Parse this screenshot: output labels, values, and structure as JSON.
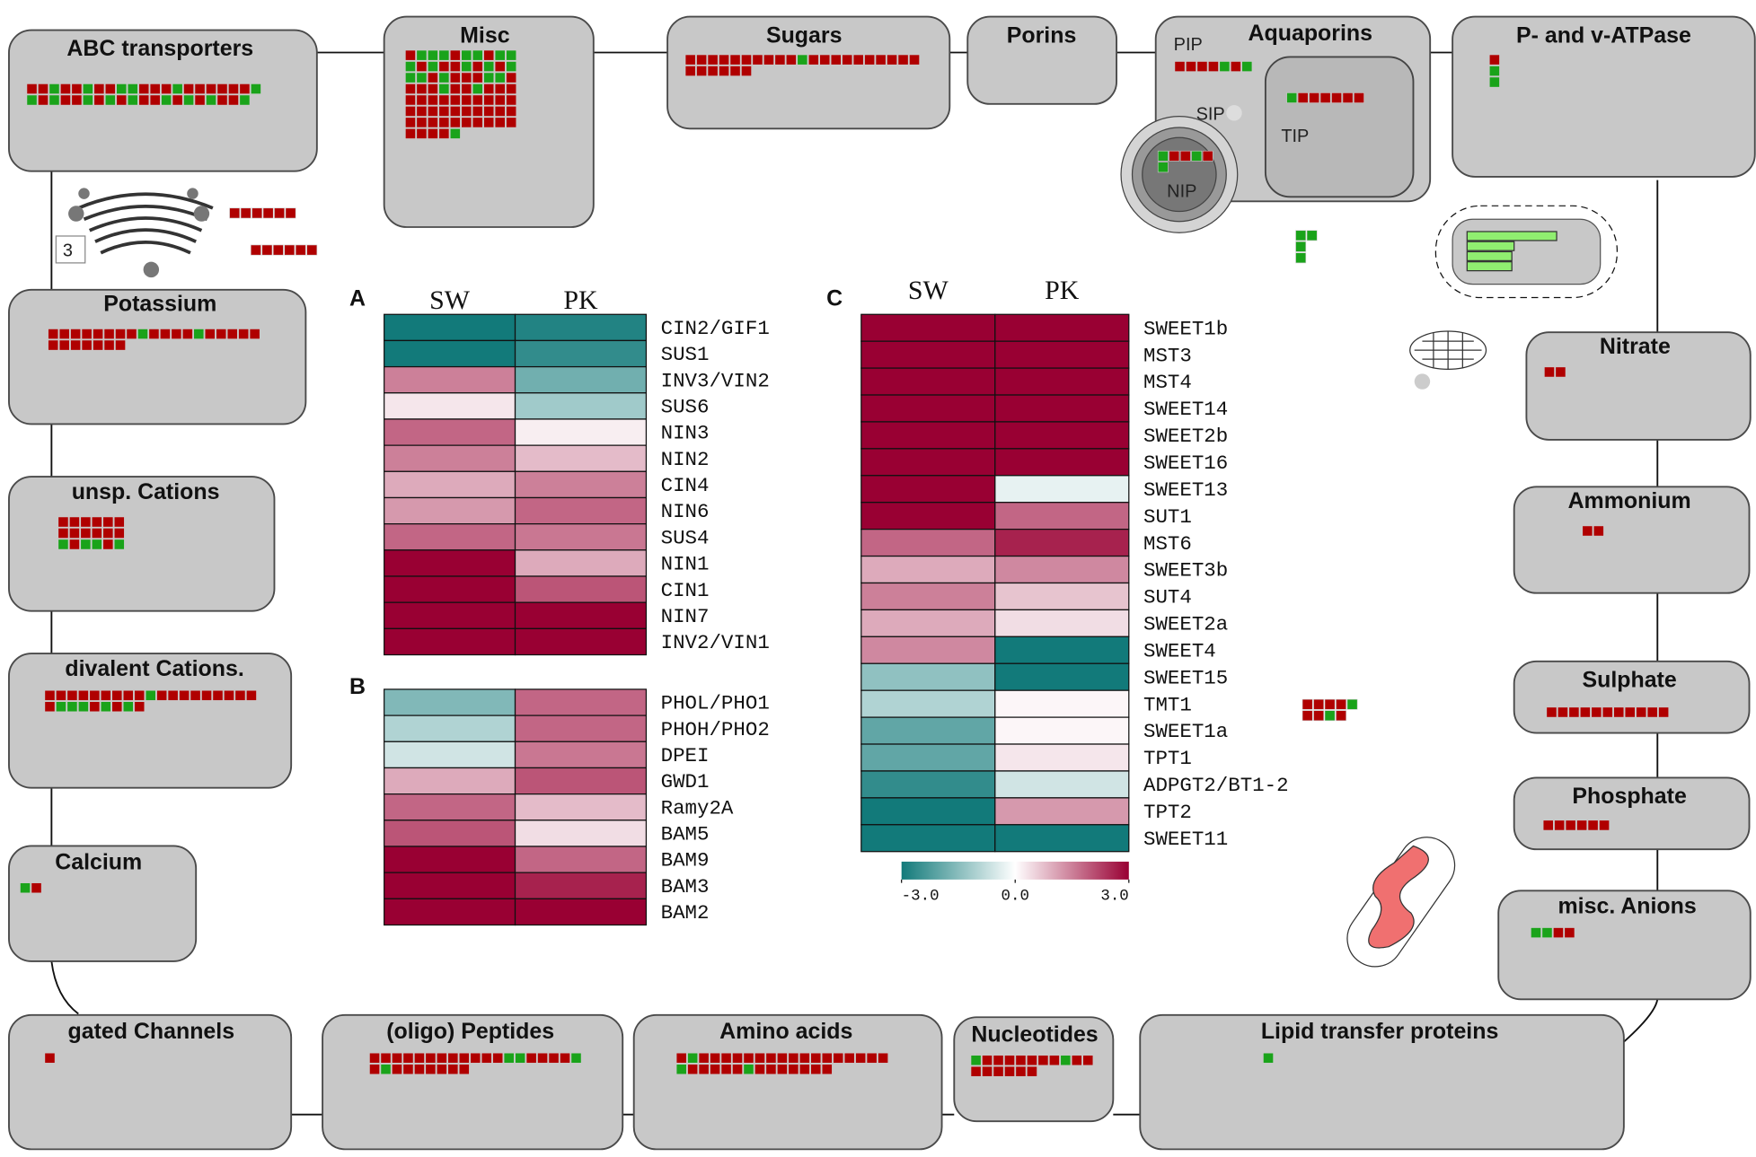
{
  "compartments": [
    {
      "label": "ABC transporters"
    },
    {
      "label": "Misc"
    },
    {
      "label": "Sugars"
    },
    {
      "label": "Porins"
    },
    {
      "label": "Aquaporins"
    },
    {
      "label": "P- and v-ATPase"
    },
    {
      "label": "Potassium"
    },
    {
      "label": "unsp. Cations"
    },
    {
      "label": "divalent Cations."
    },
    {
      "label": "Calcium"
    },
    {
      "label": "Nitrate"
    },
    {
      "label": "Ammonium"
    },
    {
      "label": "Sulphate"
    },
    {
      "label": "Phosphate"
    },
    {
      "label": "misc. Anions"
    },
    {
      "label": "gated Channels"
    },
    {
      "label": "(oligo) Peptides"
    },
    {
      "label": "Amino acids"
    },
    {
      "label": "Nucleotides"
    },
    {
      "label": "Lipid transfer proteins"
    }
  ],
  "aquaporin_sublabels": [
    "PIP",
    "SIP",
    "TIP",
    "NIP"
  ],
  "icon_label": "3",
  "heatmaps": [
    {
      "panel": "A",
      "columns": [
        "SW",
        "PK"
      ],
      "rows": [
        "CIN2/GIF1",
        "SUS1",
        "INV3/VIN2",
        "SUS6",
        "NIN3",
        "NIN2",
        "CIN4",
        "NIN6",
        "SUS4",
        "NIN1",
        "CIN1",
        "NIN7",
        "INV2/VIN1"
      ],
      "values": [
        [
          -3,
          -2.8
        ],
        [
          -3,
          -2.6
        ],
        [
          1.5,
          -1.8
        ],
        [
          0.3,
          -1.2
        ],
        [
          1.8,
          0.2
        ],
        [
          1.5,
          0.8
        ],
        [
          1.0,
          1.5
        ],
        [
          1.2,
          1.8
        ],
        [
          1.8,
          1.6
        ],
        [
          3,
          1.0
        ],
        [
          3,
          2.0
        ],
        [
          3,
          3
        ],
        [
          3,
          3
        ]
      ]
    },
    {
      "panel": "B",
      "rows": [
        "PHOL/PHO1",
        "PHOH/PHO2",
        "DPEI",
        "GWD1",
        "Ramy2A",
        "BAM5",
        "BAM9",
        "BAM3",
        "BAM2"
      ],
      "values": [
        [
          -1.6,
          1.8
        ],
        [
          -1.0,
          1.8
        ],
        [
          -0.6,
          1.6
        ],
        [
          1.0,
          2.0
        ],
        [
          1.8,
          0.8
        ],
        [
          2.0,
          0.4
        ],
        [
          3,
          1.8
        ],
        [
          3,
          2.6
        ],
        [
          3,
          3
        ]
      ]
    },
    {
      "panel": "C",
      "columns": [
        "SW",
        "PK"
      ],
      "rows": [
        "SWEET1b",
        "MST3",
        "MST4",
        "SWEET14",
        "SWEET2b",
        "SWEET16",
        "SWEET13",
        "SUT1",
        "MST6",
        "SWEET3b",
        "SUT4",
        "SWEET2a",
        "SWEET4",
        "SWEET15",
        "TMT1",
        "SWEET1a",
        "TPT1",
        "ADPGT2/BT1-2",
        "TPT2",
        "SWEET11"
      ],
      "values": [
        [
          3,
          3
        ],
        [
          3,
          3
        ],
        [
          3,
          3
        ],
        [
          3,
          3
        ],
        [
          3,
          3
        ],
        [
          3,
          3
        ],
        [
          3,
          -0.3
        ],
        [
          3,
          1.8
        ],
        [
          1.8,
          2.6
        ],
        [
          1.0,
          1.4
        ],
        [
          1.5,
          0.7
        ],
        [
          1.0,
          0.4
        ],
        [
          1.4,
          -3
        ],
        [
          -1.4,
          -3
        ],
        [
          -1.0,
          0.1
        ],
        [
          -2.0,
          0.1
        ],
        [
          -2.0,
          0.3
        ],
        [
          -2.6,
          -0.6
        ],
        [
          -3,
          1.2
        ],
        [
          -3,
          -3
        ]
      ]
    }
  ],
  "colorscale": {
    "low": "#127a7a",
    "mid": "#ffffff",
    "high": "#990033",
    "lim": [
      -3,
      3
    ],
    "ticks": [
      {
        "value": -3,
        "label": "-3.0"
      },
      {
        "value": 0,
        "label": "0.0"
      },
      {
        "value": 3,
        "label": "3.0"
      }
    ]
  }
}
